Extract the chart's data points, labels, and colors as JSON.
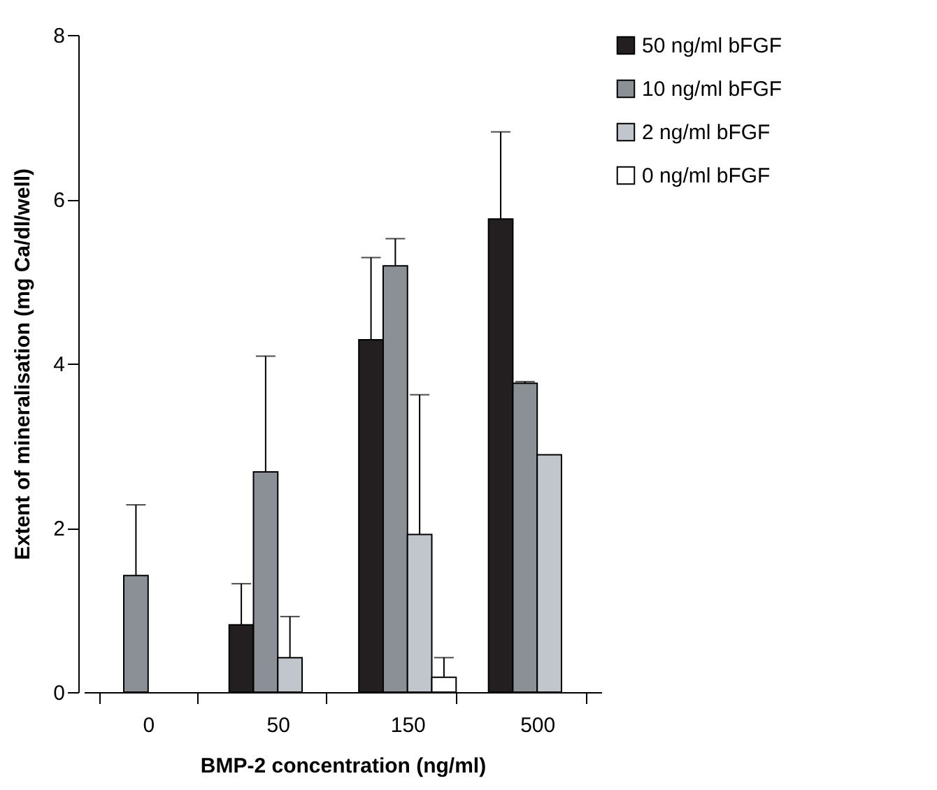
{
  "chart_data": {
    "type": "bar",
    "xlabel": "BMP-2 concentration (ng/ml)",
    "ylabel": "Extent of mineralisation (mg Ca/dl/well)",
    "categories": [
      "0",
      "50",
      "150",
      "500"
    ],
    "series": [
      {
        "name": "50 ng/ml bFGF",
        "color": "#231f20",
        "values": [
          null,
          0.82,
          4.29,
          5.76
        ],
        "errors": [
          null,
          [
            0.82,
            1.32
          ],
          [
            4.29,
            5.29
          ],
          [
            5.76,
            6.82
          ]
        ]
      },
      {
        "name": "10 ng/ml bFGF",
        "color": "#8a9096",
        "values": [
          1.42,
          2.68,
          5.19,
          3.76
        ],
        "errors": [
          [
            1.42,
            2.28
          ],
          [
            2.68,
            4.09
          ],
          [
            5.19,
            5.52
          ],
          [
            3.76,
            3.78
          ]
        ]
      },
      {
        "name": "2 ng/ml bFGF",
        "color": "#c1c6cc",
        "values": [
          null,
          0.42,
          1.92,
          2.89
        ],
        "errors": [
          null,
          [
            0.42,
            0.92
          ],
          [
            1.92,
            3.62
          ],
          null
        ]
      },
      {
        "name": "0 ng/ml bFGF",
        "color": "#ffffff",
        "values": [
          null,
          null,
          0.18,
          null
        ],
        "errors": [
          null,
          null,
          [
            0.18,
            0.42
          ],
          null
        ]
      }
    ],
    "ylim": [
      0,
      8
    ],
    "yticks": [
      0,
      2,
      4,
      6,
      8
    ],
    "grid": false,
    "legend": "top right"
  }
}
